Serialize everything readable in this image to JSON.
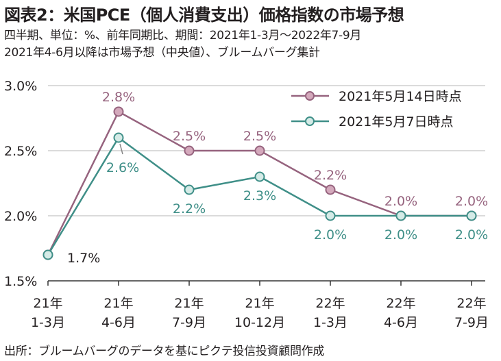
{
  "header": {
    "title": "図表2：米国PCE（個人消費支出）価格指数の市場予想",
    "subtitle1": "四半期、単位：%、前年同期比、期間：2021年1-3月～2022年7-9月",
    "subtitle2": "2021年4-6月以降は市場予想（中央値）、ブルームバーグ集計"
  },
  "footer": {
    "source": "出所：ブルームバーグのデータを基にピクテ投信投資顧問作成"
  },
  "colors": {
    "series_may14": "#96637e",
    "series_may7": "#3f8f88",
    "marker_may14_fill": "#d4a9bc",
    "marker_may7_fill": "#d5ebe7",
    "grid": "#cfcfcf",
    "axis": "#333333",
    "text": "#231f20"
  },
  "chart_data": {
    "type": "line",
    "title": "図表2：米国PCE（個人消費支出）価格指数の市場予想",
    "categories": [
      [
        "21年",
        "1-3月"
      ],
      [
        "21年",
        "4-6月"
      ],
      [
        "21年",
        "7-9月"
      ],
      [
        "21年",
        "10-12月"
      ],
      [
        "22年",
        "1-3月"
      ],
      [
        "22年",
        "4-6月"
      ],
      [
        "22年",
        "7-9月"
      ]
    ],
    "ylim": [
      1.5,
      3.0
    ],
    "yticks": [
      1.5,
      2.0,
      2.5,
      3.0
    ],
    "ytick_labels": [
      "1.5%",
      "2.0%",
      "2.5%",
      "3.0%"
    ],
    "grid": true,
    "legend_position": "top-right",
    "series": [
      {
        "name": "2021年5月14日時点",
        "color": "#96637e",
        "values": [
          1.7,
          2.8,
          2.5,
          2.5,
          2.2,
          2.0,
          2.0
        ],
        "labels": [
          "",
          "2.8%",
          "2.5%",
          "2.5%",
          "2.2%",
          "2.0%",
          "2.0%"
        ]
      },
      {
        "name": "2021年5月7日時点",
        "color": "#3f8f88",
        "values": [
          1.7,
          2.6,
          2.2,
          2.3,
          2.0,
          2.0,
          2.0
        ],
        "labels": [
          "1.7%",
          "2.6%",
          "2.2%",
          "2.3%",
          "2.0%",
          "2.0%",
          "2.0%"
        ]
      }
    ]
  }
}
